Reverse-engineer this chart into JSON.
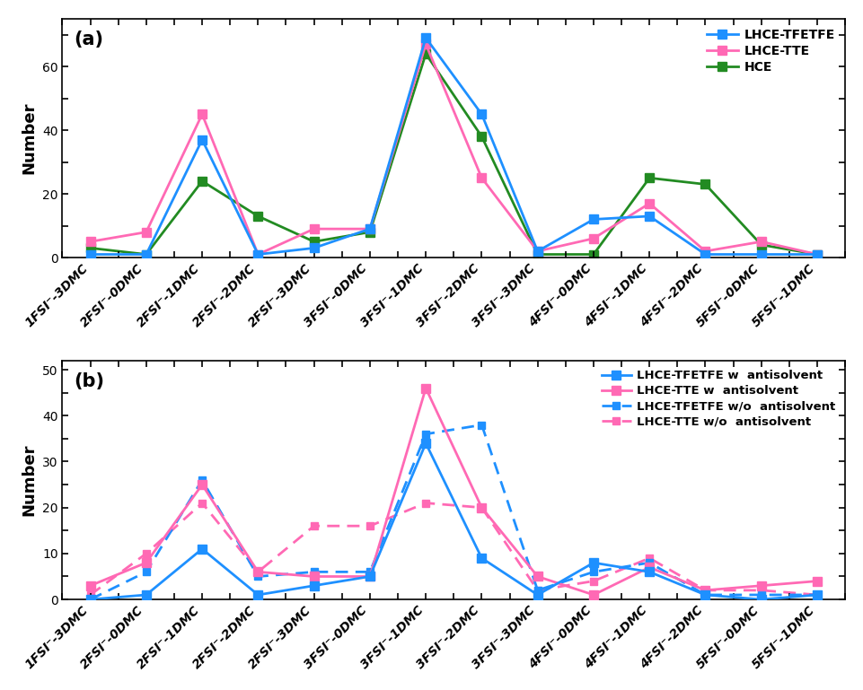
{
  "x_labels": [
    "1FSI⁻-3DMC",
    "2FSI⁻-0DMC",
    "2FSI⁻-1DMC",
    "2FSI⁻-2DMC",
    "2FSI⁻-3DMC",
    "3FSI⁻-0DMC",
    "3FSI⁻-1DMC",
    "3FSI⁻-2DMC",
    "3FSI⁻-3DMC",
    "4FSI⁻-0DMC",
    "4FSI⁻-1DMC",
    "4FSI⁻-2DMC",
    "5FSI⁻-0DMC",
    "5FSI⁻-1DMC"
  ],
  "panel_a": {
    "LHCE_TFETFE": [
      1,
      1,
      37,
      1,
      3,
      9,
      69,
      45,
      2,
      12,
      13,
      1,
      1,
      1
    ],
    "LHCE_TTE": [
      5,
      8,
      45,
      1,
      9,
      9,
      67,
      25,
      2,
      6,
      17,
      2,
      5,
      1
    ],
    "HCE": [
      3,
      1,
      24,
      13,
      5,
      8,
      64,
      38,
      1,
      1,
      25,
      23,
      4,
      1
    ],
    "ylim": [
      0,
      75
    ],
    "yticks": [
      0,
      20,
      40,
      60
    ],
    "label": "(a)"
  },
  "panel_b": {
    "LHCE_TFETFE_w": [
      0,
      1,
      11,
      1,
      3,
      5,
      34,
      9,
      1,
      8,
      6,
      1,
      0,
      1
    ],
    "LHCE_TTE_w": [
      3,
      8,
      25,
      6,
      5,
      5,
      46,
      20,
      5,
      1,
      7,
      2,
      3,
      4
    ],
    "LHCE_TFETFE_wo": [
      0,
      6,
      26,
      5,
      6,
      6,
      36,
      38,
      2,
      6,
      8,
      1,
      1,
      1
    ],
    "LHCE_TTE_wo": [
      1,
      10,
      21,
      6,
      16,
      16,
      21,
      20,
      2,
      4,
      9,
      2,
      2,
      1
    ],
    "ylim": [
      0,
      52
    ],
    "yticks": [
      0,
      10,
      20,
      30,
      40,
      50
    ],
    "label": "(b)"
  },
  "color_blue": "#1E90FF",
  "color_pink": "#FF69B4",
  "color_green": "#228B22",
  "markersize": 7,
  "linewidth": 2.0,
  "tick_labelsize": 10,
  "ylabel_fontsize": 13,
  "label_fontsize": 15,
  "legend_fontsize": 10
}
